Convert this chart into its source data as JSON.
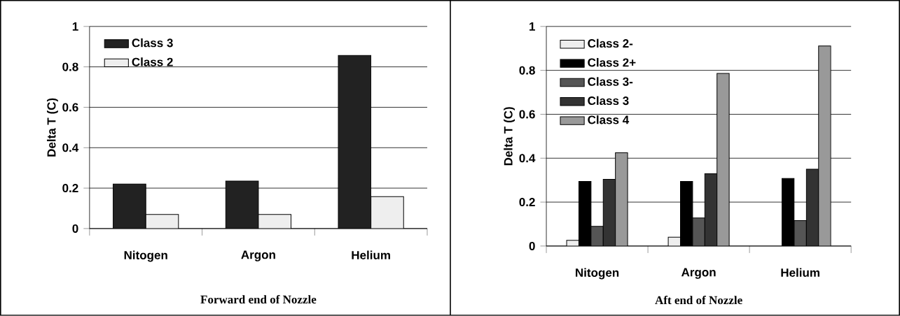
{
  "chart_data": [
    {
      "type": "bar",
      "title": "Forward end of Nozzle",
      "ylabel": "Delta T (C)",
      "categories": [
        "Nitogen",
        "Argon",
        "Helium"
      ],
      "series": [
        {
          "name": "Class 3",
          "color": "#222222",
          "values": [
            0.22,
            0.235,
            0.857
          ]
        },
        {
          "name": "Class 2",
          "color": "#eeeeee",
          "values": [
            0.07,
            0.07,
            0.158
          ]
        }
      ],
      "ylim": [
        0,
        1
      ],
      "yticks": [
        0,
        0.2,
        0.4,
        0.6,
        0.8,
        1
      ],
      "grid": "y",
      "legend": "top left"
    },
    {
      "type": "bar",
      "title": "Aft end of Nozzle",
      "ylabel": "Delta T (C)",
      "categories": [
        "Nitogen",
        "Argon",
        "Helium"
      ],
      "series": [
        {
          "name": "Class 2-",
          "color": "#eeeeee",
          "values": [
            0.026,
            0.04,
            null
          ]
        },
        {
          "name": "Class 2+",
          "color": "#000000",
          "values": [
            0.294,
            0.294,
            0.308
          ]
        },
        {
          "name": "Class 3-",
          "color": "#555555",
          "values": [
            0.09,
            0.128,
            0.116
          ]
        },
        {
          "name": "Class 3",
          "color": "#333333",
          "values": [
            0.304,
            0.329,
            0.35
          ]
        },
        {
          "name": "Class 4",
          "color": "#999999",
          "values": [
            0.425,
            0.786,
            0.911
          ]
        }
      ],
      "ylim": [
        0,
        1
      ],
      "yticks": [
        0,
        0.2,
        0.4,
        0.6,
        0.8,
        1
      ],
      "grid": "y",
      "legend": "top left"
    }
  ]
}
